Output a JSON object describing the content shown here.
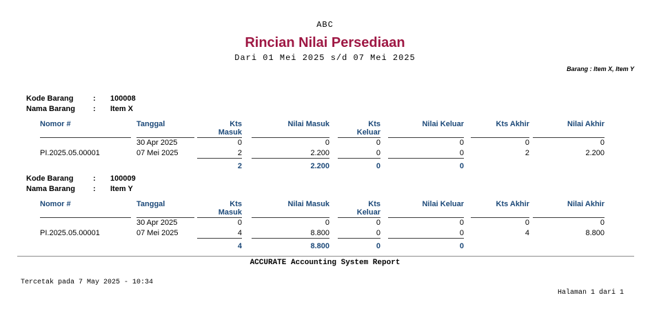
{
  "page": {
    "company": "ABC",
    "title": "Rincian Nilai Persediaan",
    "period": "Dari 01 Mei 2025 s/d 07 Mei 2025",
    "filter": "Barang : Item X, Item Y",
    "app_line": "ACCURATE Accounting System Report",
    "printed": "Tercetak pada 7 May 2025 - 10:34",
    "page_number": "Halaman 1 dari 1"
  },
  "labels": {
    "kode_barang": "Kode Barang",
    "nama_barang": "Nama Barang",
    "colon": ":"
  },
  "table_headers": [
    {
      "l1": "Nomor #",
      "l2": ""
    },
    {
      "l1": "Tanggal",
      "l2": ""
    },
    {
      "l1": "Kts",
      "l2": "Masuk"
    },
    {
      "l1": "Nilai Masuk",
      "l2": ""
    },
    {
      "l1": "Kts",
      "l2": "Keluar"
    },
    {
      "l1": "Nilai Keluar",
      "l2": ""
    },
    {
      "l1": "Kts Akhir",
      "l2": ""
    },
    {
      "l1": "Nilai Akhir",
      "l2": ""
    }
  ],
  "sections": [
    {
      "kode": "100008",
      "nama": "Item X",
      "rows": [
        {
          "nomor": "",
          "tanggal": "30 Apr 2025",
          "kts_masuk": "0",
          "nilai_masuk": "0",
          "kts_keluar": "0",
          "nilai_keluar": "0",
          "kts_akhir": "0",
          "nilai_akhir": "0"
        },
        {
          "nomor": "PI.2025.05.00001",
          "tanggal": "07 Mei 2025",
          "kts_masuk": "2",
          "nilai_masuk": "2.200",
          "kts_keluar": "0",
          "nilai_keluar": "0",
          "kts_akhir": "2",
          "nilai_akhir": "2.200"
        }
      ],
      "totals": {
        "kts_masuk": "2",
        "nilai_masuk": "2.200",
        "kts_keluar": "0",
        "nilai_keluar": "0"
      }
    },
    {
      "kode": "100009",
      "nama": "Item Y",
      "rows": [
        {
          "nomor": "",
          "tanggal": "30 Apr 2025",
          "kts_masuk": "0",
          "nilai_masuk": "0",
          "kts_keluar": "0",
          "nilai_keluar": "0",
          "kts_akhir": "0",
          "nilai_akhir": "0"
        },
        {
          "nomor": "PI.2025.05.00001",
          "tanggal": "07 Mei 2025",
          "kts_masuk": "4",
          "nilai_masuk": "8.800",
          "kts_keluar": "0",
          "nilai_keluar": "0",
          "kts_akhir": "4",
          "nilai_akhir": "8.800"
        }
      ],
      "totals": {
        "kts_masuk": "4",
        "nilai_masuk": "8.800",
        "kts_keluar": "0",
        "nilai_keluar": "0"
      }
    }
  ],
  "colors": {
    "title": "#9E1743",
    "header_blue": "#1B4878"
  }
}
